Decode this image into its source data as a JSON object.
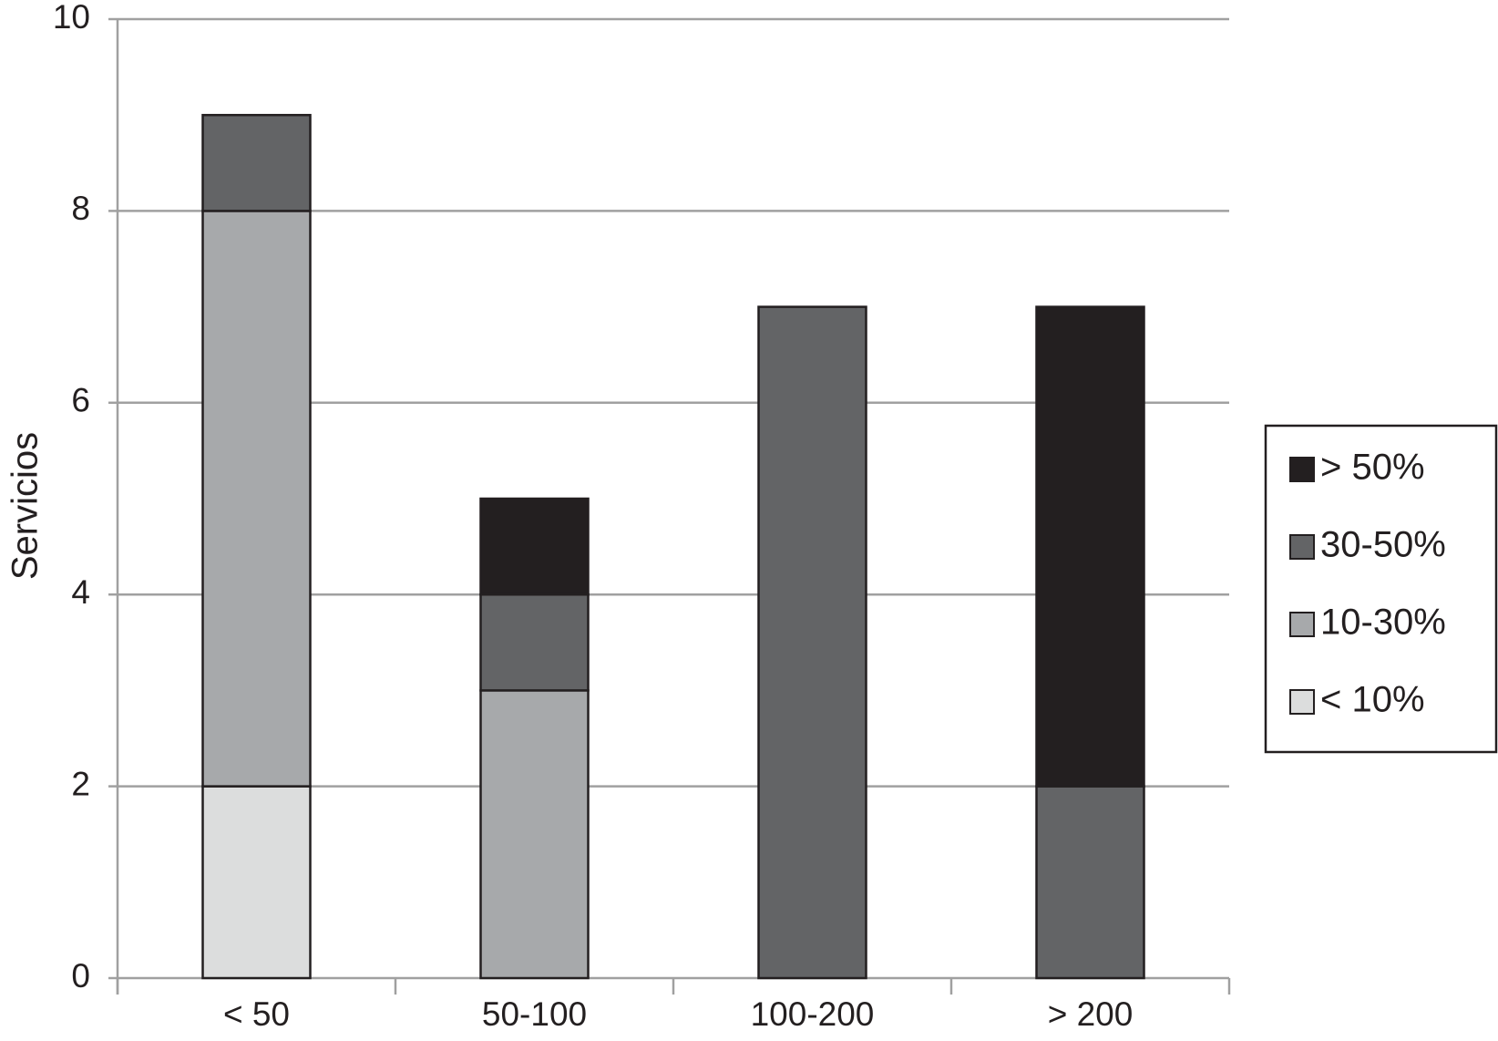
{
  "chart_data": {
    "type": "stacked_bar",
    "y_label": "Servicios",
    "categories": [
      "< 50",
      "50-100",
      "100-200",
      "> 200"
    ],
    "series": [
      {
        "name": "< 10%",
        "color": "#dcdddd",
        "values": [
          2,
          0,
          0,
          0
        ]
      },
      {
        "name": "10-30%",
        "color": "#a7a9ab",
        "values": [
          6,
          3,
          0,
          0
        ]
      },
      {
        "name": "30-50%",
        "color": "#636466",
        "values": [
          1,
          1,
          7,
          2
        ]
      },
      {
        "name": "> 50%",
        "color": "#231f20",
        "values": [
          0,
          1,
          0,
          5
        ]
      }
    ],
    "ylim": [
      0,
      10
    ],
    "yticks": [
      0,
      2,
      4,
      6,
      8,
      10
    ],
    "grid": true,
    "legend": "right"
  }
}
